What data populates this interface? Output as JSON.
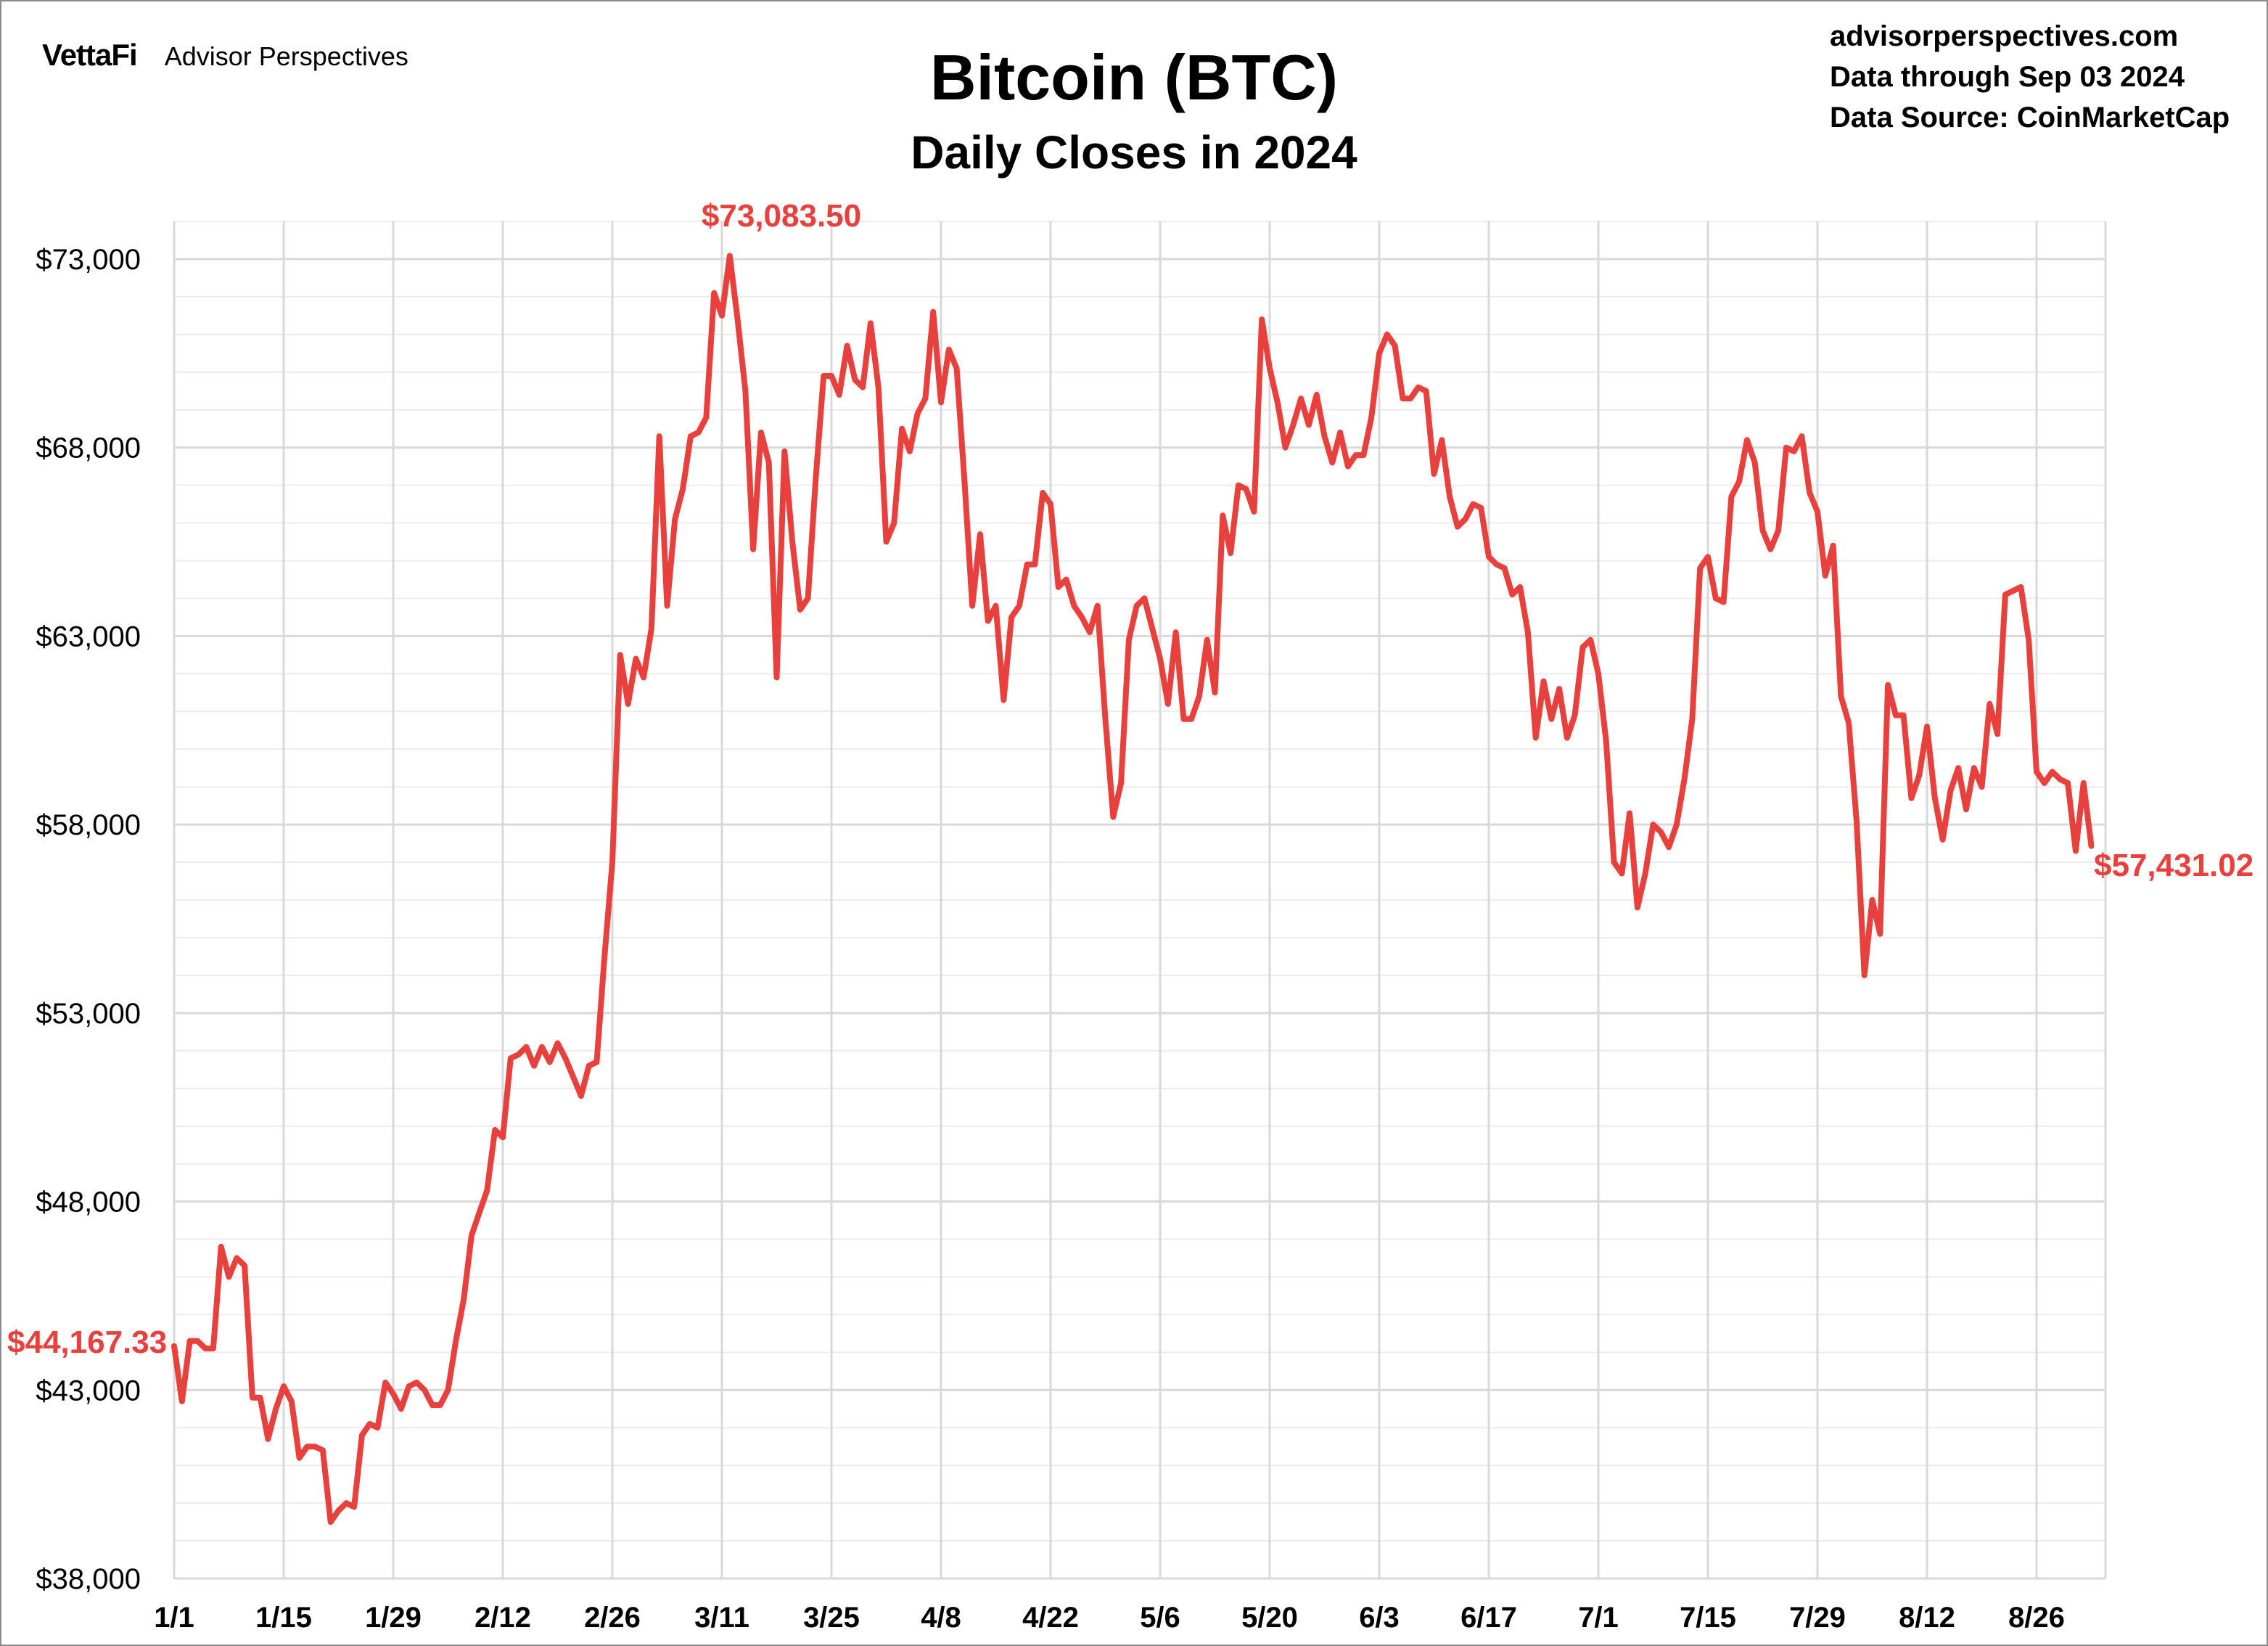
{
  "header": {
    "brand_logo": "VettaFi",
    "brand_name": "Advisor Perspectives",
    "title": "Bitcoin (BTC)",
    "subtitle": "Daily Closes in 2024",
    "site": "advisorperspectives.com",
    "data_through": "Data through Sep 03 2024",
    "data_source": "Data Source: CoinMarketCap"
  },
  "annotations": {
    "start_label": "$44,167.33",
    "high_label": "$73,083.50",
    "end_label": "$57,431.02"
  },
  "colors": {
    "line": "#e8403c",
    "grid_major": "#d9d9d9",
    "grid_minor": "#ececec",
    "frame": "#8c8c8c"
  },
  "chart_data": {
    "type": "line",
    "title": "Bitcoin (BTC)",
    "subtitle": "Daily Closes in 2024",
    "xlabel": "",
    "ylabel": "",
    "ylim": [
      38000,
      74000
    ],
    "y_ticks": [
      38000,
      43000,
      48000,
      53000,
      58000,
      63000,
      68000,
      73000
    ],
    "y_tick_labels": [
      "$38,000",
      "$43,000",
      "$48,000",
      "$53,000",
      "$58,000",
      "$63,000",
      "$68,000",
      "$73,000"
    ],
    "x_ticks": [
      "1/1",
      "1/15",
      "1/29",
      "2/12",
      "2/26",
      "3/11",
      "3/25",
      "4/8",
      "4/22",
      "5/6",
      "5/20",
      "6/3",
      "6/17",
      "7/1",
      "7/15",
      "7/29",
      "8/12",
      "8/26"
    ],
    "grid": true,
    "legend": "none",
    "series": [
      {
        "values": [
          44167,
          42700,
          44300,
          44300,
          44100,
          44100,
          46800,
          46000,
          46500,
          46300,
          42800,
          42800,
          41700,
          42500,
          43100,
          42700,
          41200,
          41500,
          41500,
          41400,
          39500,
          39800,
          40000,
          39900,
          41800,
          42100,
          42000,
          43200,
          42900,
          42500,
          43100,
          43200,
          43000,
          42600,
          42600,
          43000,
          44300,
          45400,
          47100,
          47700,
          48300,
          49900,
          49700,
          51800,
          51900,
          52100,
          51600,
          52100,
          51700,
          52200,
          51800,
          51300,
          50800,
          51600,
          51700,
          54500,
          57000,
          62500,
          61200,
          62400,
          61900,
          63200,
          68300,
          63800,
          66100,
          66900,
          68300,
          68400,
          68800,
          72100,
          71500,
          73083,
          71400,
          69500,
          65300,
          68400,
          67600,
          61900,
          67900,
          65500,
          63700,
          64000,
          67200,
          69900,
          69900,
          69400,
          70700,
          69800,
          69600,
          71300,
          69600,
          65500,
          66000,
          68500,
          67900,
          68900,
          69300,
          71600,
          69200,
          70600,
          70100,
          67100,
          63800,
          65700,
          63400,
          63800,
          61300,
          63500,
          63800,
          64900,
          64900,
          66800,
          66500,
          64300,
          64500,
          63800,
          63500,
          63100,
          63800,
          60800,
          58200,
          59100,
          62900,
          63800,
          64000,
          63200,
          62400,
          61200,
          63100,
          60800,
          60800,
          61400,
          62900,
          61500,
          66200,
          65200,
          67000,
          66900,
          66300,
          71400,
          70100,
          69200,
          68000,
          68600,
          69300,
          68600,
          69400,
          68300,
          67600,
          68400,
          67500,
          67800,
          67800,
          68800,
          70500,
          71000,
          70700,
          69300,
          69300,
          69600,
          69500,
          67300,
          68200,
          66700,
          65900,
          66100,
          66500,
          66400,
          65100,
          64900,
          64800,
          64100,
          64300,
          63100,
          60300,
          61800,
          60800,
          61600,
          60300,
          60900,
          62700,
          62900,
          62000,
          60200,
          57000,
          56700,
          58300,
          55800,
          56700,
          58000,
          57800,
          57400,
          58000,
          59200,
          60800,
          64800,
          65100,
          64000,
          63900,
          66700,
          67100,
          68200,
          67600,
          65800,
          65300,
          65800,
          68000,
          67900,
          68300,
          66800,
          66300,
          64600,
          65400,
          61400,
          60700,
          58100,
          54000,
          56000,
          55100,
          61700,
          60900,
          60900,
          58700,
          59300,
          60600,
          58700,
          57600,
          58900,
          59500,
          58400,
          59500,
          59000,
          61200,
          60400,
          64100,
          64200,
          64300,
          62900,
          59400,
          59100,
          59400,
          59200,
          59100,
          57300,
          59100,
          57431
        ]
      }
    ]
  }
}
